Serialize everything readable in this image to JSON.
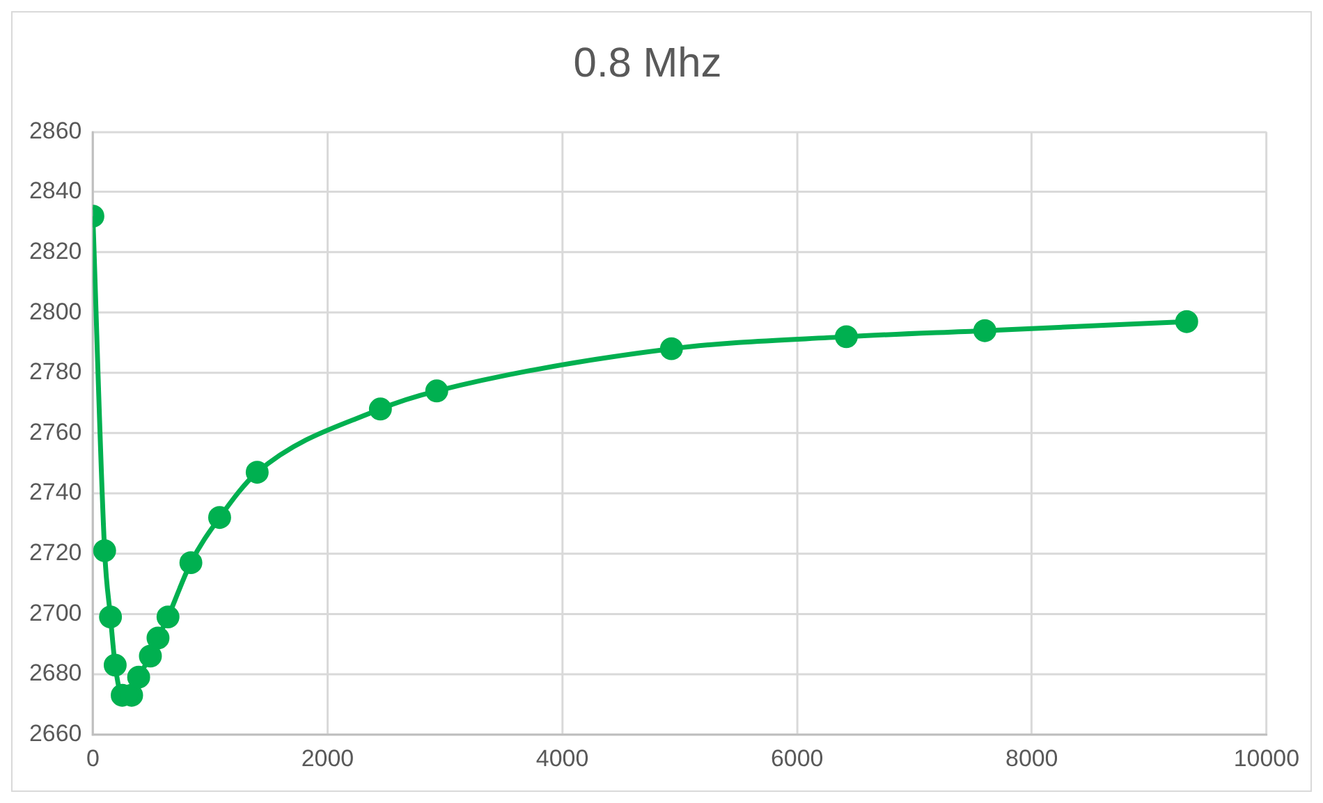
{
  "chart_data": {
    "type": "line",
    "title": "0.8 Mhz",
    "x": [
      0,
      100,
      150,
      190,
      250,
      330,
      390,
      490,
      555,
      640,
      835,
      1080,
      1400,
      2450,
      2930,
      4930,
      6420,
      7600,
      9320
    ],
    "series": [
      {
        "color": "#00b050",
        "values": [
          2832,
          2721,
          2699,
          2683,
          2673,
          2673,
          2679,
          2686,
          2692,
          2699,
          2717,
          2732,
          2747,
          2768,
          2774,
          2788,
          2792,
          2794,
          2797
        ]
      }
    ],
    "xlim": [
      0,
      10000
    ],
    "xticks": [
      0,
      2000,
      4000,
      6000,
      8000,
      10000
    ],
    "ylim": [
      2660,
      2860
    ],
    "yticks": [
      2660,
      2680,
      2700,
      2720,
      2740,
      2760,
      2780,
      2800,
      2820,
      2840,
      2860
    ],
    "grid": true,
    "legend": false,
    "marker": "circle",
    "line_style": "solid"
  }
}
